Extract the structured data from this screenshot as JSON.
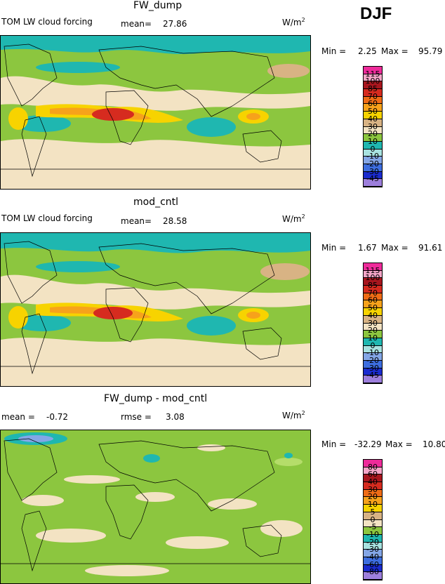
{
  "season": "DJF",
  "colors": {
    "ocean_teal": "#1fb7b0",
    "green": "#8cc63f",
    "light_green": "#b5dd6a",
    "tan": "#f3e3c3",
    "brown_tan": "#d8b384",
    "yellow": "#f7d300",
    "orange": "#f7a21b",
    "dark_orange": "#ef6c16",
    "red": "#d62b1f",
    "dark_red": "#a8161e",
    "pink": "#f5a6c8",
    "magenta": "#ee2b9a",
    "light_cyan": "#a8e2e0",
    "light_blue": "#84a6e6",
    "blue": "#3d6ee0",
    "dark_blue": "#1a2bcf",
    "purple": "#9d7fdc"
  },
  "chart_data": [
    {
      "type": "heatmap",
      "title": "FW_dump",
      "field_label": "TOM LW cloud forcing",
      "mean_label": "mean=",
      "mean_value": "27.86",
      "units": "W/m",
      "units_sup": "2",
      "min_label": "Min =",
      "min_value": "2.25",
      "max_label": "Max =",
      "max_value": "95.79",
      "colorbar": {
        "levels": [
          "115",
          "100",
          "85",
          "70",
          "60",
          "50",
          "40",
          "30",
          "20",
          "10",
          "0",
          "-10",
          "-20",
          "-30",
          "-45"
        ],
        "colors": [
          "#ee2b9a",
          "#f5a6c8",
          "#a8161e",
          "#d62b1f",
          "#ef6c16",
          "#f7a21b",
          "#f7d300",
          "#d8b384",
          "#f3e3c3",
          "#8cc63f",
          "#1fb7b0",
          "#a8e2e0",
          "#84a6e6",
          "#3d6ee0",
          "#1a2bcf",
          "#9d7fdc"
        ]
      }
    },
    {
      "type": "heatmap",
      "title": "mod_cntl",
      "field_label": "TOM LW cloud forcing",
      "mean_label": "mean=",
      "mean_value": "28.58",
      "units": "W/m",
      "units_sup": "2",
      "min_label": "Min =",
      "min_value": "1.67",
      "max_label": "Max =",
      "max_value": "91.61",
      "colorbar": {
        "levels": [
          "115",
          "100",
          "85",
          "70",
          "60",
          "50",
          "40",
          "30",
          "20",
          "10",
          "0",
          "-10",
          "-20",
          "-30",
          "-45"
        ],
        "colors": [
          "#ee2b9a",
          "#f5a6c8",
          "#a8161e",
          "#d62b1f",
          "#ef6c16",
          "#f7a21b",
          "#f7d300",
          "#d8b384",
          "#f3e3c3",
          "#8cc63f",
          "#1fb7b0",
          "#a8e2e0",
          "#84a6e6",
          "#3d6ee0",
          "#1a2bcf",
          "#9d7fdc"
        ]
      }
    },
    {
      "type": "heatmap",
      "title": "FW_dump - mod_cntl",
      "mean_label": "mean =",
      "mean_value": "-0.72",
      "rmse_label": "rmse =",
      "rmse_value": "3.08",
      "units": "W/m",
      "units_sup": "2",
      "min_label": "Min =",
      "min_value": "-32.29",
      "max_label": "Max =",
      "max_value": "10.80",
      "colorbar": {
        "levels": [
          "80",
          "60",
          "40",
          "30",
          "20",
          "10",
          "5",
          "0",
          "-5",
          "-10",
          "-20",
          "-30",
          "-40",
          "-60",
          "-80"
        ],
        "colors": [
          "#ee2b9a",
          "#f5a6c8",
          "#a8161e",
          "#d62b1f",
          "#ef6c16",
          "#f7a21b",
          "#f7d300",
          "#d8b384",
          "#f3e3c3",
          "#8cc63f",
          "#1fb7b0",
          "#a8e2e0",
          "#84a6e6",
          "#3d6ee0",
          "#1a2bcf",
          "#9d7fdc"
        ]
      }
    }
  ]
}
